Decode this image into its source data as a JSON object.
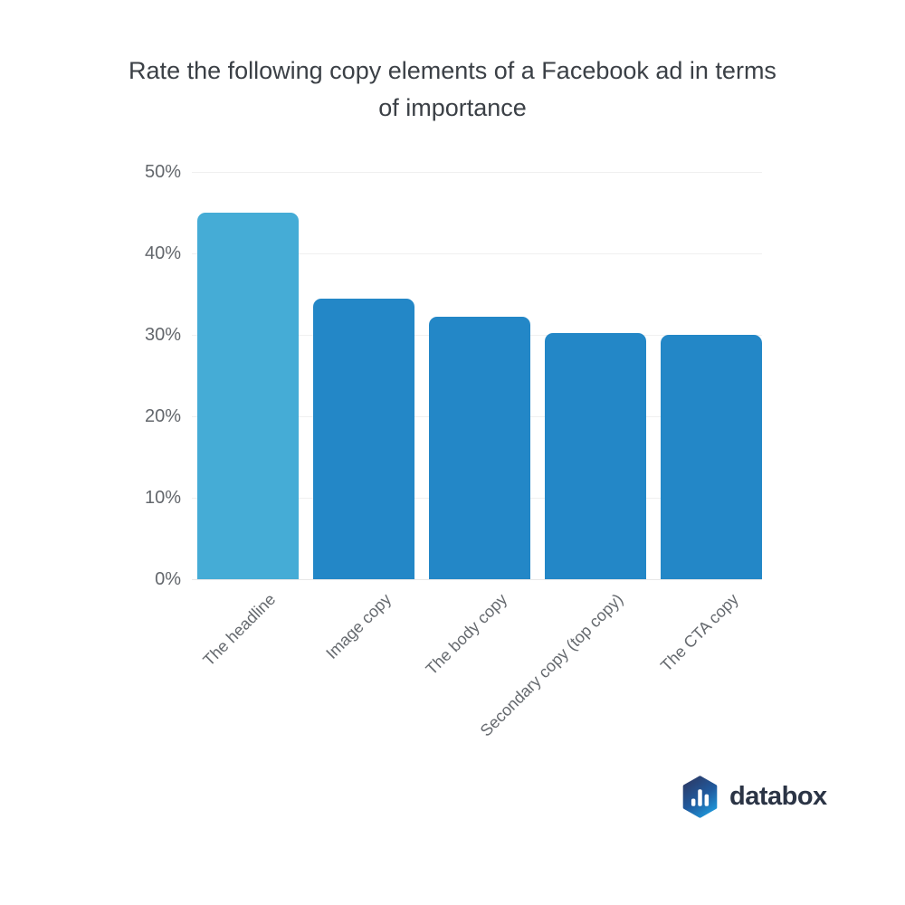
{
  "chart_data": {
    "type": "bar",
    "title": "Rate the following copy elements of a Facebook ad in terms of importance",
    "categories": [
      "The headline",
      "Image copy",
      "The body copy",
      "Secondary copy (top copy)",
      "The CTA copy"
    ],
    "values": [
      45,
      34.5,
      32.2,
      30.2,
      30
    ],
    "unit": "%",
    "xlabel": "",
    "ylabel": "",
    "ylim": [
      0,
      50
    ],
    "ytick_values": [
      0,
      10,
      20,
      30,
      40,
      50
    ],
    "ytick_labels": [
      "0%",
      "10%",
      "20%",
      "30%",
      "40%",
      "50%"
    ],
    "grid": "horizontal",
    "legend": "none",
    "bar_colors": [
      "#45acd6",
      "#2387c7",
      "#2387c7",
      "#2387c7",
      "#2387c7"
    ],
    "highlight_color": "#45acd6",
    "default_bar_color": "#2387c7"
  },
  "branding": {
    "logo_text": "databox",
    "logo_icon": "databox-hexagon-bars-icon",
    "logo_text_color": "#2b3445",
    "hexagon_gradient": [
      "#2c3a66",
      "#1f96d8"
    ]
  }
}
